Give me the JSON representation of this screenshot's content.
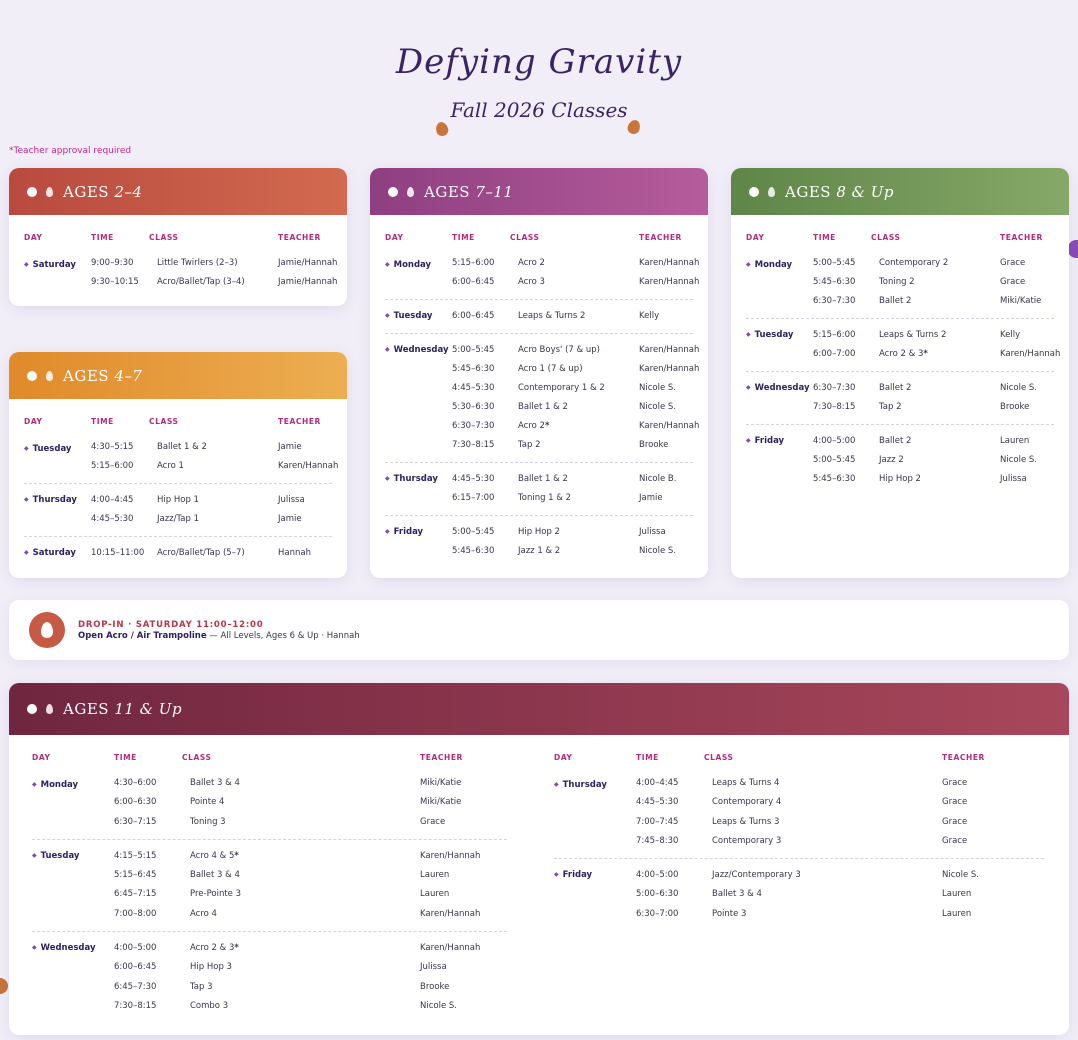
{
  "header": {
    "brand": "Defying Gravity",
    "subtitle": "Fall 2026 Classes",
    "note": "*Teacher approval required"
  },
  "colors": {
    "ages_2_4": "#c65a45",
    "ages_4_7": "#e5962e",
    "ages_7_11": "#a04b8c",
    "ages_8_up": "#6b8f52",
    "ages_11_up": "#7e2b45",
    "accent_pink": "#c0278a"
  },
  "columns": {
    "day": "DAY",
    "time": "TIME",
    "class": "CLASS",
    "teacher": "TEACHER"
  },
  "cards": {
    "ages_2_4": {
      "title_prefix": "AGES",
      "title_range": "2–4",
      "groups": [
        {
          "day": "Saturday",
          "rows": [
            {
              "time": "9:00–9:30",
              "class": "Little Twirlers (2–3)",
              "teacher": "Jamie/Hannah"
            },
            {
              "time": "9:30–10:15",
              "class": "Acro/Ballet/Tap (3–4)",
              "teacher": "Jamie/Hannah"
            }
          ]
        }
      ]
    },
    "ages_4_7": {
      "title_prefix": "AGES",
      "title_range": "4–7",
      "groups": [
        {
          "day": "Tuesday",
          "rows": [
            {
              "time": "4:30–5:15",
              "class": "Ballet 1 & 2",
              "teacher": "Jamie"
            },
            {
              "time": "5:15–6:00",
              "class": "Acro 1",
              "teacher": "Karen/Hannah"
            }
          ]
        },
        {
          "day": "Thursday",
          "rows": [
            {
              "time": "4:00–4:45",
              "class": "Hip Hop 1",
              "teacher": "Julissa"
            },
            {
              "time": "4:45–5:30",
              "class": "Jazz/Tap 1",
              "teacher": "Jamie"
            }
          ]
        },
        {
          "day": "Saturday",
          "rows": [
            {
              "time": "10:15–11:00",
              "class": "Acro/Ballet/Tap (5–7)",
              "teacher": "Hannah"
            }
          ]
        }
      ]
    },
    "ages_7_11": {
      "title_prefix": "AGES",
      "title_range": "7–11",
      "groups": [
        {
          "day": "Monday",
          "rows": [
            {
              "time": "5:15–6:00",
              "class": "Acro 2",
              "teacher": "Karen/Hannah"
            },
            {
              "time": "6:00–6:45",
              "class": "Acro 3",
              "teacher": "Karen/Hannah"
            }
          ]
        },
        {
          "day": "Tuesday",
          "rows": [
            {
              "time": "6:00–6:45",
              "class": "Leaps & Turns 2",
              "teacher": "Kelly"
            }
          ]
        },
        {
          "day": "Wednesday",
          "rows": [
            {
              "time": "5:00–5:45",
              "class": "Acro Boys' (7 & up)",
              "teacher": "Karen/Hannah"
            },
            {
              "time": "5:45–6:30",
              "class": "Acro 1 (7 & up)",
              "teacher": "Karen/Hannah"
            },
            {
              "time": "4:45–5:30",
              "class": "Contemporary 1 & 2",
              "teacher": "Nicole S."
            },
            {
              "time": "5:30–6:30",
              "class": "Ballet 1 & 2",
              "teacher": "Nicole S."
            },
            {
              "time": "6:30–7:30",
              "class": "Acro 2",
              "star": "*",
              "teacher": "Karen/Hannah"
            },
            {
              "time": "7:30–8:15",
              "class": "Tap 2",
              "teacher": "Brooke"
            }
          ]
        },
        {
          "day": "Thursday",
          "rows": [
            {
              "time": "4:45–5:30",
              "class": "Ballet 1 & 2",
              "teacher": "Nicole B."
            },
            {
              "time": "6:15–7:00",
              "class": "Toning 1 & 2",
              "teacher": "Jamie"
            }
          ]
        },
        {
          "day": "Friday",
          "rows": [
            {
              "time": "5:00–5:45",
              "class": "Hip Hop 2",
              "teacher": "Julissa"
            },
            {
              "time": "5:45–6:30",
              "class": "Jazz 1 & 2",
              "teacher": "Nicole S."
            }
          ]
        }
      ]
    },
    "ages_8_up": {
      "title_prefix": "AGES",
      "title_range": "8 & Up",
      "groups": [
        {
          "day": "Monday",
          "rows": [
            {
              "time": "5:00–5:45",
              "class": "Contemporary 2",
              "teacher": "Grace"
            },
            {
              "time": "5:45–6:30",
              "class": "Toning 2",
              "teacher": "Grace"
            },
            {
              "time": "6:30–7:30",
              "class": "Ballet 2",
              "teacher": "Miki/Katie"
            }
          ]
        },
        {
          "day": "Tuesday",
          "rows": [
            {
              "time": "5:15–6:00",
              "class": "Leaps & Turns 2",
              "teacher": "Kelly"
            },
            {
              "time": "6:00–7:00",
              "class": "Acro 2 & 3",
              "star": "*",
              "teacher": "Karen/Hannah"
            }
          ]
        },
        {
          "day": "Wednesday",
          "rows": [
            {
              "time": "6:30–7:30",
              "class": "Ballet 2",
              "teacher": "Nicole S."
            },
            {
              "time": "7:30–8:15",
              "class": "Tap 2",
              "teacher": "Brooke"
            }
          ]
        },
        {
          "day": "Friday",
          "rows": [
            {
              "time": "4:00–5:00",
              "class": "Ballet 2",
              "teacher": "Lauren"
            },
            {
              "time": "5:00–5:45",
              "class": "Jazz 2",
              "teacher": "Nicole S."
            },
            {
              "time": "5:45–6:30",
              "class": "Hip Hop 2",
              "teacher": "Julissa"
            }
          ]
        }
      ]
    },
    "ages_11_up": {
      "title_prefix": "AGES",
      "title_range": "11 & Up",
      "left_groups": [
        {
          "day": "Monday",
          "rows": [
            {
              "time": "4:30–6:00",
              "class": "Ballet 3 & 4",
              "teacher": "Miki/Katie"
            },
            {
              "time": "6:00–6:30",
              "class": "Pointe 4",
              "teacher": "Miki/Katie"
            },
            {
              "time": "6:30–7:15",
              "class": "Toning 3",
              "teacher": "Grace"
            }
          ]
        },
        {
          "day": "Tuesday",
          "rows": [
            {
              "time": "4:15–5:15",
              "class": "Acro 4 & 5",
              "star": "*",
              "teacher": "Karen/Hannah"
            },
            {
              "time": "5:15–6:45",
              "class": "Ballet 3 & 4",
              "teacher": "Lauren"
            },
            {
              "time": "6:45–7:15",
              "class": "Pre-Pointe 3",
              "teacher": "Lauren"
            },
            {
              "time": "7:00–8:00",
              "class": "Acro 4",
              "teacher": "Karen/Hannah"
            }
          ]
        },
        {
          "day": "Wednesday",
          "rows": [
            {
              "time": "4:00–5:00",
              "class": "Acro 2 & 3",
              "star": "*",
              "teacher": "Karen/Hannah"
            },
            {
              "time": "6:00–6:45",
              "class": "Hip Hop 3",
              "teacher": "Julissa"
            },
            {
              "time": "6:45–7:30",
              "class": "Tap 3",
              "teacher": "Brooke"
            },
            {
              "time": "7:30–8:15",
              "class": "Combo 3",
              "teacher": "Nicole S."
            }
          ]
        }
      ],
      "right_groups": [
        {
          "day": "Thursday",
          "rows": [
            {
              "time": "4:00–4:45",
              "class": "Leaps & Turns 4",
              "teacher": "Grace"
            },
            {
              "time": "4:45–5:30",
              "class": "Contemporary 4",
              "teacher": "Grace"
            },
            {
              "time": "7:00–7:45",
              "class": "Leaps & Turns 3",
              "teacher": "Grace"
            },
            {
              "time": "7:45–8:30",
              "class": "Contemporary 3",
              "teacher": "Grace"
            }
          ]
        },
        {
          "day": "Friday",
          "rows": [
            {
              "time": "4:00–5:00",
              "class": "Jazz/Contemporary 3",
              "teacher": "Nicole S."
            },
            {
              "time": "5:00–6:30",
              "class": "Ballet 3 & 4",
              "teacher": "Lauren"
            },
            {
              "time": "6:30–7:00",
              "class": "Pointe 3",
              "teacher": "Lauren"
            }
          ]
        }
      ]
    }
  },
  "dropin": {
    "title": "DROP-IN · SATURDAY 11:00–12:00",
    "class": "Open Acro / Air Trampoline",
    "detail": " — All Levels, Ages 6 & Up · Hannah"
  }
}
